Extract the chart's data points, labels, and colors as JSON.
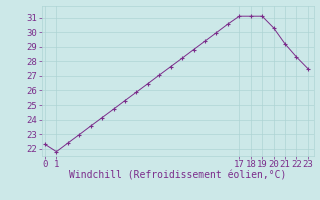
{
  "full_x": [
    0,
    1,
    2,
    3,
    4,
    5,
    6,
    7,
    8,
    9,
    10,
    11,
    12,
    13,
    14,
    15,
    16,
    17,
    18,
    19,
    20,
    21,
    22,
    23
  ],
  "full_y": [
    22.3,
    21.8,
    22.39,
    22.97,
    23.56,
    24.14,
    24.72,
    25.31,
    25.89,
    26.47,
    27.06,
    27.64,
    28.22,
    28.81,
    29.39,
    29.97,
    30.56,
    31.1,
    31.1,
    31.1,
    30.3,
    29.2,
    28.3,
    27.5
  ],
  "x_ticks": [
    0,
    1,
    17,
    18,
    19,
    20,
    21,
    22,
    23
  ],
  "y_ticks": [
    22,
    23,
    24,
    25,
    26,
    27,
    28,
    29,
    30,
    31
  ],
  "ylim": [
    21.5,
    31.8
  ],
  "xlim": [
    -0.3,
    23.5
  ],
  "line_color": "#7b2d8b",
  "bg_color": "#cce8e8",
  "grid_color": "#aed4d4",
  "xlabel": "Windchill (Refroidissement éolien,°C)",
  "xlabel_fontsize": 7,
  "tick_fontsize": 6.5
}
